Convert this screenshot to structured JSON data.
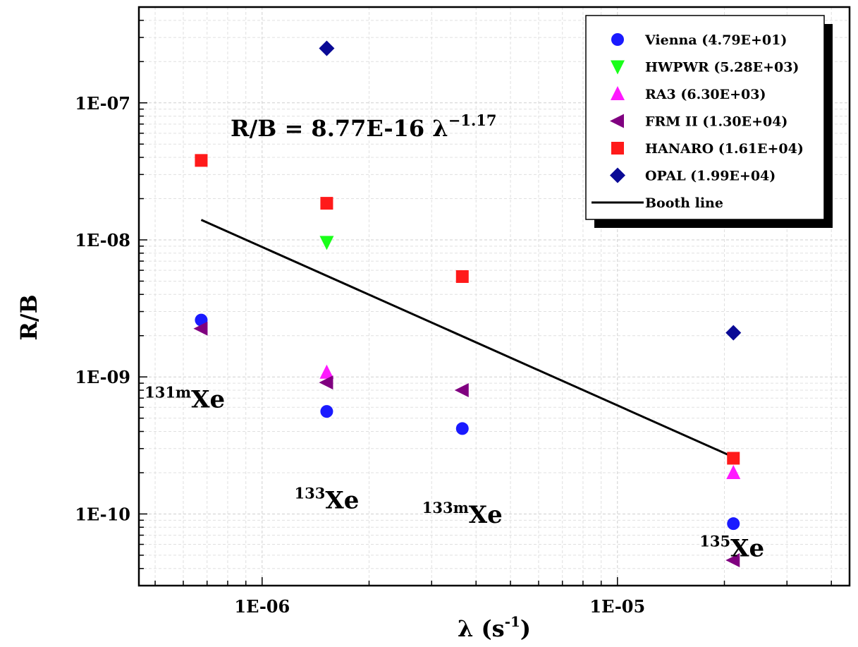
{
  "chart_data": {
    "type": "scatter",
    "x_scale": "log",
    "y_scale": "log",
    "xlim": [
      4.5e-07,
      4.5e-05
    ],
    "ylim": [
      3e-11,
      5e-07
    ],
    "xlabel_main": "λ (s",
    "xlabel_sup": "-1",
    "xlabel_close": ")",
    "ylabel": "R/B",
    "x_ticks": [
      {
        "value": 1e-06,
        "label": "1E-06"
      },
      {
        "value": 1e-05,
        "label": "1E-05"
      }
    ],
    "y_ticks": [
      {
        "value": 1e-10,
        "label": "1E-10"
      },
      {
        "value": 1e-09,
        "label": "1E-09"
      },
      {
        "value": 1e-08,
        "label": "1E-08"
      },
      {
        "value": 1e-07,
        "label": "1E-07"
      }
    ],
    "grid": true,
    "legend_position": "top-right",
    "annotation": {
      "prefix": "R/B = 8.77E-16 λ",
      "exponent": "−1.17"
    },
    "isotopes": [
      {
        "mass": "131m",
        "name": "Xe",
        "x": 6.06e-07,
        "y": 6e-10
      },
      {
        "mass": "133",
        "name": "Xe",
        "x": 1.52e-06,
        "y": 1.1e-10
      },
      {
        "mass": "133m",
        "name": "Xe",
        "x": 3.66e-06,
        "y": 8.6e-11
      },
      {
        "mass": "135",
        "name": "Xe",
        "x": 2.1e-05,
        "y": 4.9e-11
      }
    ],
    "series": [
      {
        "name": "Vienna (4.79E+01)",
        "marker": "circle",
        "color": "#1a1aff",
        "points": [
          [
            6.74e-07,
            2.6e-09
          ],
          [
            1.52e-06,
            5.6e-10
          ],
          [
            3.66e-06,
            4.2e-10
          ],
          [
            2.12e-05,
            8.5e-11
          ]
        ]
      },
      {
        "name": "HWPWR (5.28E+03)",
        "marker": "triangle-down",
        "color": "#19ff19",
        "points": [
          [
            1.52e-06,
            9.6e-09
          ]
        ]
      },
      {
        "name": "RA3 (6.30E+03)",
        "marker": "triangle-up",
        "color": "#ff19ff",
        "points": [
          [
            1.52e-06,
            1.08e-09
          ],
          [
            2.12e-05,
            2e-10
          ]
        ]
      },
      {
        "name": "FRM II (1.30E+04)",
        "marker": "triangle-left",
        "color": "#800080",
        "points": [
          [
            6.74e-07,
            2.25e-09
          ],
          [
            1.52e-06,
            9.1e-10
          ],
          [
            3.66e-06,
            8e-10
          ],
          [
            2.12e-05,
            4.6e-11
          ]
        ]
      },
      {
        "name": "HANARO (1.61E+04)",
        "marker": "square",
        "color": "#ff1a1a",
        "points": [
          [
            6.74e-07,
            3.8e-08
          ],
          [
            1.52e-06,
            1.85e-08
          ],
          [
            3.66e-06,
            5.4e-09
          ],
          [
            2.12e-05,
            2.55e-10
          ]
        ]
      },
      {
        "name": "OPAL (1.99E+04)",
        "marker": "diamond",
        "color": "#0a0a96",
        "points": [
          [
            1.52e-06,
            2.5e-07
          ],
          [
            2.12e-05,
            2.1e-09
          ]
        ]
      }
    ],
    "line": {
      "name": "Booth line",
      "color": "#000000",
      "points": [
        [
          6.74e-07,
          1.4e-08
        ],
        [
          2.12e-05,
          2.6e-10
        ]
      ]
    }
  }
}
